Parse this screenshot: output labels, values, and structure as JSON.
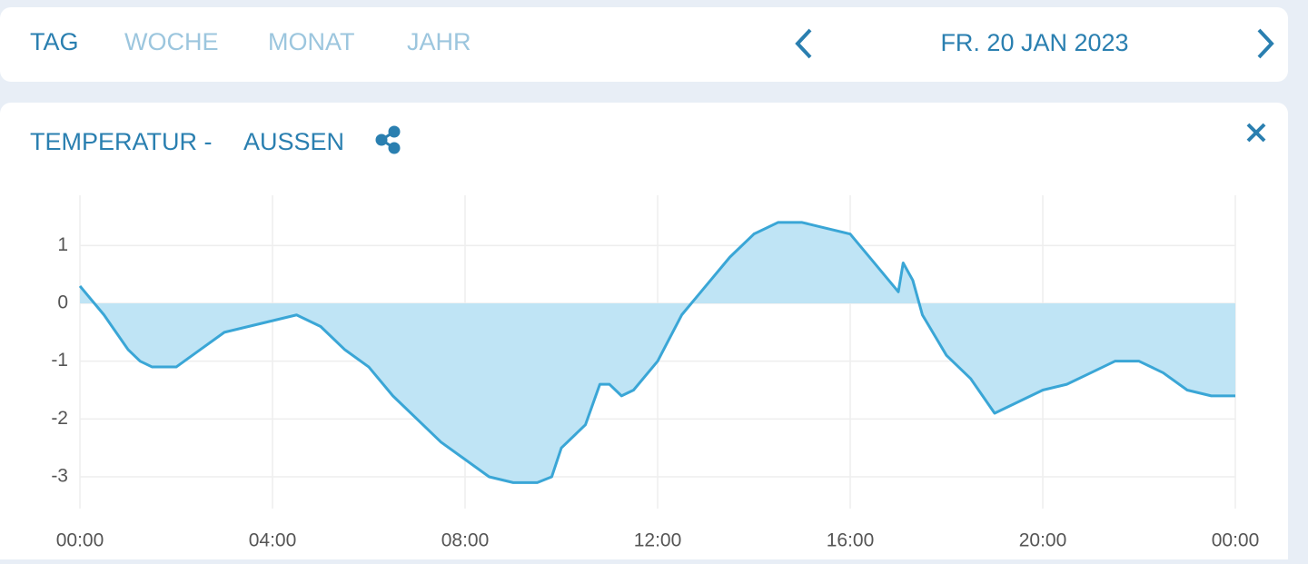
{
  "header": {
    "tabs": [
      "TAG",
      "WOCHE",
      "MONAT",
      "JAHR"
    ],
    "date": "FR. 20 JAN 2023"
  },
  "panel": {
    "title": "TEMPERATUR -",
    "subtitle": "AUSSEN"
  },
  "chart_data": {
    "type": "area",
    "x": [
      0,
      0.5,
      1,
      1.25,
      1.5,
      2,
      2.5,
      3,
      3.5,
      4,
      4.5,
      5,
      5.5,
      6,
      6.5,
      7,
      7.5,
      8,
      8.5,
      9,
      9.5,
      9.8,
      10,
      10.5,
      10.8,
      11,
      11.25,
      11.5,
      12,
      12.5,
      13,
      13.5,
      14,
      14.5,
      15,
      15.5,
      16,
      16.5,
      17,
      17.1,
      17.3,
      17.5,
      18,
      18.5,
      19,
      19.5,
      20,
      20.5,
      21,
      21.5,
      22,
      22.5,
      23,
      23.5,
      24
    ],
    "values": [
      0.3,
      -0.2,
      -0.8,
      -1.0,
      -1.1,
      -1.1,
      -0.8,
      -0.5,
      -0.4,
      -0.3,
      -0.2,
      -0.4,
      -0.8,
      -1.1,
      -1.6,
      -2.0,
      -2.4,
      -2.7,
      -3.0,
      -3.1,
      -3.1,
      -3.0,
      -2.5,
      -2.1,
      -1.4,
      -1.4,
      -1.6,
      -1.5,
      -1.0,
      -0.2,
      0.3,
      0.8,
      1.2,
      1.4,
      1.4,
      1.3,
      1.2,
      0.7,
      0.2,
      0.7,
      0.4,
      -0.2,
      -0.9,
      -1.3,
      -1.9,
      -1.7,
      -1.5,
      -1.4,
      -1.2,
      -1.0,
      -1.0,
      -1.2,
      -1.5,
      -1.6,
      -1.6
    ],
    "color": "#3aa6d6",
    "fill_color": "#bfe4f5",
    "xlim": [
      0,
      24
    ],
    "xticks": [
      {
        "value": 0,
        "label": "00:00"
      },
      {
        "value": 4,
        "label": "04:00"
      },
      {
        "value": 8,
        "label": "08:00"
      },
      {
        "value": 12,
        "label": "12:00"
      },
      {
        "value": 16,
        "label": "16:00"
      },
      {
        "value": 20,
        "label": "20:00"
      },
      {
        "value": 24,
        "label": "00:00"
      }
    ],
    "ylim": [
      -3.55,
      1.87
    ],
    "yticks": [
      1,
      0,
      -1,
      -2,
      -3
    ],
    "grid": true
  }
}
